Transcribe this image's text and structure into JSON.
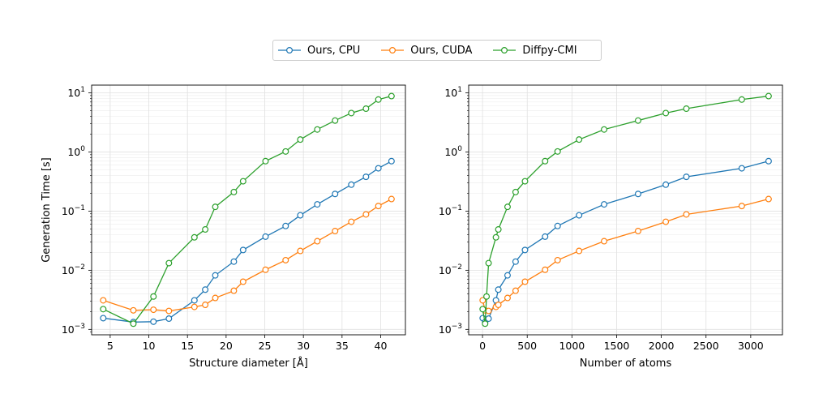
{
  "legend": [
    {
      "name": "Ours, CPU",
      "color": "#1f77b4"
    },
    {
      "name": "Ours, CUDA",
      "color": "#ff7f0e"
    },
    {
      "name": "Diffpy-CMI",
      "color": "#2ca02c"
    }
  ],
  "chart_data": [
    {
      "type": "line",
      "xlabel": "Structure diameter [Å]",
      "ylabel": "Generation Time [s]",
      "xlim": [
        2.6,
        43.2
      ],
      "ylim": [
        0.00081,
        13.5
      ],
      "yscale": "log",
      "xticks": [
        5,
        10,
        15,
        20,
        25,
        30,
        35,
        40
      ],
      "yticks": [
        0.001,
        0.01,
        0.1,
        1,
        10
      ],
      "ytick_labels": [
        {
          "base": "10",
          "exp": "−3"
        },
        {
          "base": "10",
          "exp": "−2"
        },
        {
          "base": "10",
          "exp": "−1"
        },
        {
          "base": "10",
          "exp": "0"
        },
        {
          "base": "10",
          "exp": "1"
        }
      ],
      "grid": true,
      "series": [
        {
          "name": "Ours, CPU",
          "color": "#1f77b4",
          "x": [
            4.1,
            8.0,
            10.6,
            12.6,
            15.9,
            17.3,
            18.6,
            21.0,
            22.2,
            25.1,
            27.7,
            29.6,
            31.8,
            34.1,
            36.2,
            38.1,
            39.7,
            41.4
          ],
          "y": [
            0.00155,
            0.00133,
            0.00135,
            0.00152,
            0.0031,
            0.0047,
            0.0082,
            0.014,
            0.022,
            0.037,
            0.056,
            0.085,
            0.13,
            0.195,
            0.28,
            0.38,
            0.53,
            0.7
          ]
        },
        {
          "name": "Ours, CUDA",
          "color": "#ff7f0e",
          "x": [
            4.1,
            8.0,
            10.6,
            12.6,
            15.9,
            17.3,
            18.6,
            21.0,
            22.2,
            25.1,
            27.7,
            29.6,
            31.8,
            34.1,
            36.2,
            38.1,
            39.7,
            41.4
          ],
          "y": [
            0.0031,
            0.0021,
            0.00215,
            0.00205,
            0.0024,
            0.0026,
            0.0034,
            0.0045,
            0.0064,
            0.0102,
            0.0148,
            0.0212,
            0.031,
            0.046,
            0.066,
            0.088,
            0.122,
            0.16
          ]
        },
        {
          "name": "Diffpy-CMI",
          "color": "#2ca02c",
          "x": [
            4.1,
            8.0,
            10.6,
            12.6,
            15.9,
            17.3,
            18.6,
            21.0,
            22.2,
            25.1,
            27.7,
            29.6,
            31.8,
            34.1,
            36.2,
            38.1,
            39.7,
            41.4
          ],
          "y": [
            0.0022,
            0.00125,
            0.0036,
            0.0132,
            0.036,
            0.049,
            0.118,
            0.21,
            0.32,
            0.7,
            1.02,
            1.62,
            2.4,
            3.4,
            4.55,
            5.4,
            7.7,
            8.8
          ]
        }
      ]
    },
    {
      "type": "line",
      "xlabel": "Number of atoms",
      "ylabel": "",
      "xlim": [
        -155,
        3355
      ],
      "ylim": [
        0.00081,
        13.5
      ],
      "yscale": "log",
      "xticks": [
        0,
        500,
        1000,
        1500,
        2000,
        2500,
        3000
      ],
      "yticks": [
        0.001,
        0.01,
        0.1,
        1,
        10
      ],
      "ytick_labels": [
        {
          "base": "10",
          "exp": "−3"
        },
        {
          "base": "10",
          "exp": "−2"
        },
        {
          "base": "10",
          "exp": "−1"
        },
        {
          "base": "10",
          "exp": "0"
        },
        {
          "base": "10",
          "exp": "1"
        }
      ],
      "grid": true,
      "series": [
        {
          "name": "Ours, CPU",
          "color": "#1f77b4",
          "x": [
            2,
            29,
            68,
            150,
            177,
            280,
            370,
            475,
            700,
            840,
            1080,
            1360,
            1740,
            2050,
            2280,
            2900,
            3200
          ],
          "y": [
            0.00155,
            0.00133,
            0.00152,
            0.0031,
            0.0047,
            0.0082,
            0.014,
            0.022,
            0.037,
            0.056,
            0.085,
            0.13,
            0.195,
            0.28,
            0.38,
            0.53,
            0.7
          ]
        },
        {
          "name": "Ours, CUDA",
          "color": "#ff7f0e",
          "x": [
            2,
            29,
            68,
            150,
            177,
            280,
            370,
            475,
            700,
            840,
            1080,
            1360,
            1740,
            2050,
            2280,
            2900,
            3200
          ],
          "y": [
            0.0031,
            0.0021,
            0.00205,
            0.0024,
            0.0026,
            0.0034,
            0.0045,
            0.0064,
            0.0102,
            0.0148,
            0.0212,
            0.031,
            0.046,
            0.066,
            0.088,
            0.122,
            0.16
          ]
        },
        {
          "name": "Diffpy-CMI",
          "color": "#2ca02c",
          "x": [
            2,
            29,
            45,
            68,
            150,
            177,
            280,
            370,
            475,
            700,
            840,
            1080,
            1360,
            1740,
            2050,
            2280,
            2900,
            3200
          ],
          "y": [
            0.0022,
            0.00125,
            0.0036,
            0.0132,
            0.036,
            0.049,
            0.118,
            0.21,
            0.32,
            0.7,
            1.02,
            1.62,
            2.4,
            3.4,
            4.55,
            5.4,
            7.7,
            8.8
          ]
        }
      ]
    }
  ]
}
